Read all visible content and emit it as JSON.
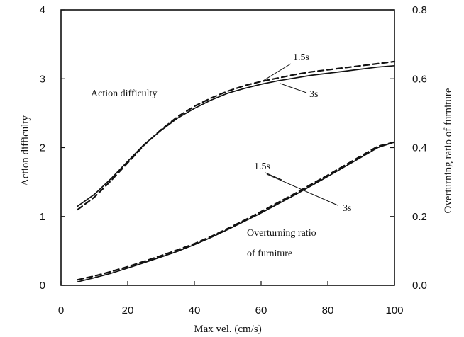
{
  "chart_data": {
    "type": "line",
    "xlabel": "Max vel. (cm/s)",
    "ylabel": "Action difficulty",
    "y2label": "Overturning ratio of furniture",
    "xlim": [
      0,
      100
    ],
    "ylim": [
      0,
      4
    ],
    "y2lim": [
      0,
      0.8
    ],
    "x_ticks": [
      "0",
      "20",
      "40",
      "60",
      "80",
      "100"
    ],
    "y_ticks": [
      "0",
      "1",
      "2",
      "3",
      "4"
    ],
    "y2_ticks": [
      "0.0",
      "0.2",
      "0.4",
      "0.6",
      "0.8"
    ],
    "grid": false,
    "annotations": {
      "action_label": "Action difficulty",
      "overturn_label_line1": "Overturning ratio",
      "overturn_label_line2": "of furniture",
      "upper_15s": "1.5s",
      "upper_3s": "3s",
      "lower_15s": "1.5s",
      "lower_3s": "3s"
    },
    "series": [
      {
        "axis": "left",
        "style": "solid",
        "x": [
          5,
          10,
          15,
          20,
          25,
          30,
          35,
          40,
          45,
          50,
          55,
          60,
          65,
          70,
          75,
          80,
          85,
          90,
          95,
          100
        ],
        "y": [
          1.15,
          1.32,
          1.55,
          1.8,
          2.05,
          2.25,
          2.43,
          2.57,
          2.69,
          2.79,
          2.86,
          2.92,
          2.97,
          3.01,
          3.05,
          3.08,
          3.11,
          3.14,
          3.17,
          3.19
        ]
      },
      {
        "axis": "left",
        "style": "dashed",
        "x": [
          5,
          10,
          15,
          20,
          25,
          30,
          35,
          40,
          45,
          50,
          55,
          60,
          65,
          70,
          75,
          80,
          85,
          90,
          95,
          100
        ],
        "y": [
          1.1,
          1.28,
          1.52,
          1.78,
          2.04,
          2.26,
          2.45,
          2.6,
          2.72,
          2.82,
          2.9,
          2.96,
          3.01,
          3.06,
          3.1,
          3.13,
          3.16,
          3.19,
          3.22,
          3.25
        ]
      },
      {
        "axis": "right",
        "style": "solid",
        "x": [
          5,
          10,
          15,
          20,
          25,
          30,
          35,
          40,
          45,
          50,
          55,
          60,
          65,
          70,
          75,
          80,
          85,
          90,
          95,
          100
        ],
        "y": [
          0.01,
          0.022,
          0.035,
          0.05,
          0.066,
          0.082,
          0.099,
          0.118,
          0.139,
          0.162,
          0.186,
          0.21,
          0.236,
          0.262,
          0.289,
          0.316,
          0.344,
          0.372,
          0.4,
          0.416
        ]
      },
      {
        "axis": "right",
        "style": "dashed",
        "x": [
          5,
          10,
          15,
          20,
          25,
          30,
          35,
          40,
          45,
          50,
          55,
          60,
          65,
          70,
          75,
          80,
          85,
          90,
          95,
          100
        ],
        "y": [
          0.016,
          0.027,
          0.04,
          0.054,
          0.07,
          0.086,
          0.103,
          0.121,
          0.142,
          0.165,
          0.189,
          0.214,
          0.24,
          0.266,
          0.293,
          0.32,
          0.348,
          0.376,
          0.404,
          0.416
        ]
      }
    ]
  }
}
